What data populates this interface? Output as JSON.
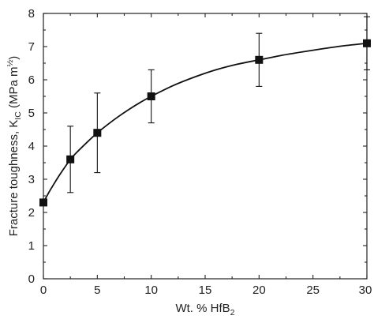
{
  "chart_data": {
    "type": "line",
    "title": "",
    "xlabel": {
      "text": "Wt. % HfB",
      "sub": "2"
    },
    "ylabel": {
      "main": "Fracture toughness, K",
      "sub": "IC",
      "unit": " (MPa m",
      "sup": "½",
      "close": ")"
    },
    "xlim": [
      0,
      30
    ],
    "ylim": [
      0,
      8
    ],
    "xticks": [
      0,
      5,
      10,
      15,
      20,
      25,
      30
    ],
    "yticks": [
      0,
      1,
      2,
      3,
      4,
      5,
      6,
      7,
      8
    ],
    "xtick_labels": [
      "0",
      "5",
      "10",
      "15",
      "20",
      "25",
      "30"
    ],
    "ytick_labels": [
      "0",
      "1",
      "2",
      "3",
      "4",
      "5",
      "6",
      "7",
      "8"
    ],
    "series": [
      {
        "x": [
          0,
          2.5,
          5,
          10,
          20,
          30
        ],
        "y": [
          2.3,
          3.6,
          4.4,
          5.5,
          6.6,
          7.1
        ],
        "err_low": [
          2.3,
          2.6,
          3.2,
          4.7,
          5.8,
          6.3
        ],
        "err_high": [
          2.3,
          4.6,
          5.6,
          6.3,
          7.4,
          7.9
        ],
        "marker": "square",
        "color": "#111111"
      }
    ],
    "fit_curve": [
      [
        0,
        2.3
      ],
      [
        0.5,
        2.6
      ],
      [
        1,
        2.87
      ],
      [
        1.5,
        3.13
      ],
      [
        2,
        3.37
      ],
      [
        2.5,
        3.6
      ],
      [
        3,
        3.78
      ],
      [
        4,
        4.1
      ],
      [
        5,
        4.4
      ],
      [
        6,
        4.66
      ],
      [
        7,
        4.9
      ],
      [
        8,
        5.12
      ],
      [
        9,
        5.32
      ],
      [
        10,
        5.5
      ],
      [
        12,
        5.82
      ],
      [
        14,
        6.08
      ],
      [
        16,
        6.3
      ],
      [
        18,
        6.47
      ],
      [
        20,
        6.6
      ],
      [
        22,
        6.73
      ],
      [
        24,
        6.84
      ],
      [
        26,
        6.94
      ],
      [
        28,
        7.03
      ],
      [
        30,
        7.1
      ]
    ],
    "grid": false,
    "legend": "none"
  }
}
